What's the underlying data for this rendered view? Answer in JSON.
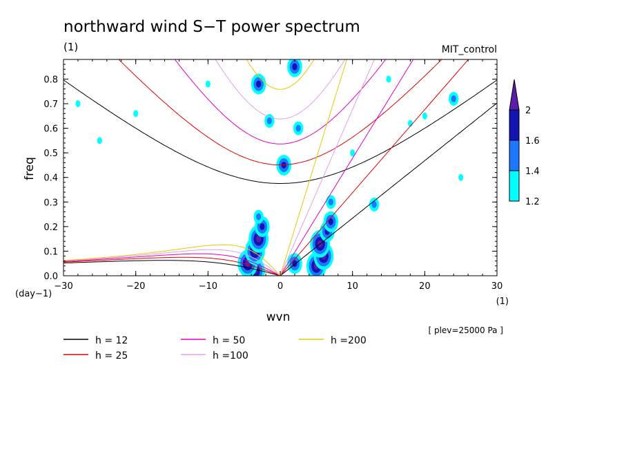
{
  "chart_data": {
    "type": "heatmap",
    "title": "northward wind S−T power spectrum",
    "subtitle_left": "(1)",
    "subtitle_right": "MIT_control",
    "xlabel": "wvn",
    "ylabel": "freq",
    "x_unit": "(1)",
    "y_unit": "(day−1)",
    "annotation": "[ plev=25000 Pa ]",
    "xlim": [
      -30,
      30
    ],
    "ylim": [
      0,
      0.88
    ],
    "x_ticks": [
      -30,
      -20,
      -10,
      0,
      10,
      20,
      30
    ],
    "x_tick_labels": [
      "−30",
      "−20",
      "−10",
      "0",
      "10",
      "20",
      "30"
    ],
    "y_ticks": [
      0,
      0.1,
      0.2,
      0.3,
      0.4,
      0.5,
      0.6,
      0.7,
      0.8
    ],
    "y_tick_labels": [
      "0.0",
      "0.1",
      "0.2",
      "0.3",
      "0.4",
      "0.5",
      "0.6",
      "0.7",
      "0.8"
    ],
    "colorbar": {
      "levels": [
        1.2,
        1.4,
        1.6,
        2
      ],
      "level_labels": [
        "1.2",
        "1.4",
        "1.6",
        "2"
      ],
      "colors": [
        "#00ffff",
        "#1e78ff",
        "#1414b4",
        "#5a1eaa"
      ]
    },
    "dispersion_curves": [
      {
        "label": "h = 12",
        "h": 12,
        "color": "#000000"
      },
      {
        "label": "h = 25",
        "h": 25,
        "color": "#e00000"
      },
      {
        "label": "h = 50",
        "h": 50,
        "color": "#e000c0"
      },
      {
        "label": "h =100",
        "h": 100,
        "color": "#e0a0e8"
      },
      {
        "label": "h =200",
        "h": 200,
        "color": "#e8c800"
      }
    ],
    "spectral_peaks": [
      {
        "k": -3.5,
        "f": 0.02,
        "level": 2
      },
      {
        "k": -4.5,
        "f": 0.05,
        "level": 2
      },
      {
        "k": -3.5,
        "f": 0.1,
        "level": 2
      },
      {
        "k": -3.0,
        "f": 0.15,
        "level": 2
      },
      {
        "k": -2.5,
        "f": 0.2,
        "level": 1.6
      },
      {
        "k": -3.0,
        "f": 0.24,
        "level": 1.4
      },
      {
        "k": 5.0,
        "f": 0.04,
        "level": 2
      },
      {
        "k": 6.0,
        "f": 0.08,
        "level": 2
      },
      {
        "k": 5.5,
        "f": 0.13,
        "level": 2
      },
      {
        "k": 6.5,
        "f": 0.18,
        "level": 1.6
      },
      {
        "k": 7.0,
        "f": 0.22,
        "level": 1.6
      },
      {
        "k": 2.0,
        "f": 0.05,
        "level": 1.6
      },
      {
        "k": 0.5,
        "f": 0.45,
        "level": 1.6
      },
      {
        "k": -3.0,
        "f": 0.78,
        "level": 1.6
      },
      {
        "k": 2.0,
        "f": 0.85,
        "level": 1.6
      },
      {
        "k": -1.5,
        "f": 0.63,
        "level": 1.4
      },
      {
        "k": 2.5,
        "f": 0.6,
        "level": 1.4
      },
      {
        "k": 7.0,
        "f": 0.3,
        "level": 1.4
      },
      {
        "k": 13.0,
        "f": 0.29,
        "level": 1.4
      },
      {
        "k": 24.0,
        "f": 0.72,
        "level": 1.4
      },
      {
        "k": 20.0,
        "f": 0.65,
        "level": 1.2
      },
      {
        "k": -20.0,
        "f": 0.66,
        "level": 1.2
      },
      {
        "k": -28.0,
        "f": 0.7,
        "level": 1.2
      },
      {
        "k": -25.0,
        "f": 0.55,
        "level": 1.2
      },
      {
        "k": 10.0,
        "f": 0.5,
        "level": 1.2
      },
      {
        "k": 15.0,
        "f": 0.8,
        "level": 1.2
      },
      {
        "k": 18.0,
        "f": 0.62,
        "level": 1.2
      },
      {
        "k": -10.0,
        "f": 0.78,
        "level": 1.2
      },
      {
        "k": 25.0,
        "f": 0.4,
        "level": 1.2
      }
    ]
  }
}
